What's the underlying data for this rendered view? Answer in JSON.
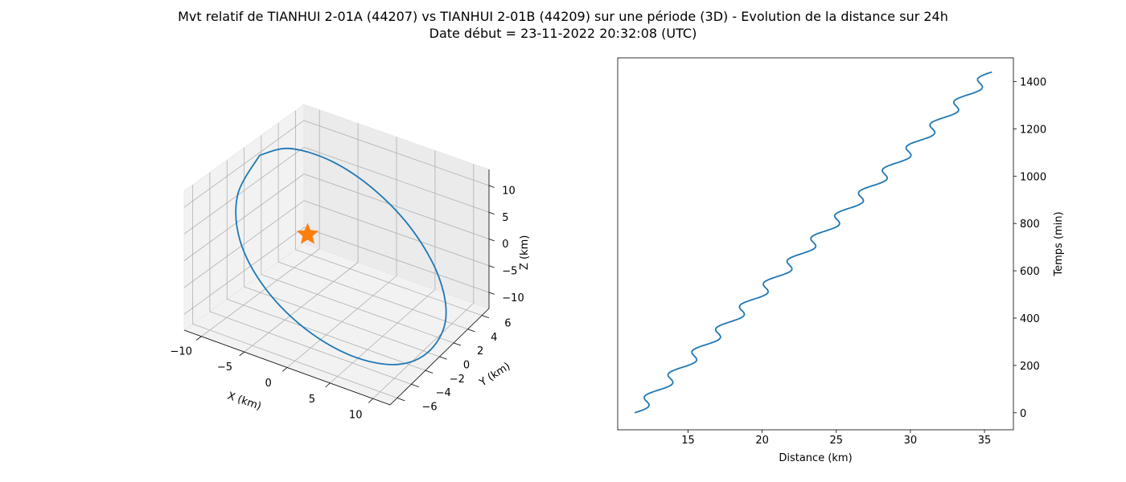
{
  "title_line1": "Mvt relatif de TIANHUI 2-01A (44207) vs TIANHUI 2-01B (44209) sur une période (3D) - Evolution de la distance sur 24h",
  "title_line2": "Date début = 23-11-2022 20:32:08 (UTC)",
  "colors": {
    "series": "#1f77b4",
    "marker": "#ff7f0e"
  },
  "chart_data": [
    {
      "type": "line",
      "projection": "3d",
      "xlabel": "X (km)",
      "ylabel": "Y (km)",
      "zlabel": "Z (km)",
      "x_ticks": [
        -10,
        -5,
        0,
        5,
        10
      ],
      "y_ticks": [
        -6,
        -4,
        -2,
        0,
        2,
        4,
        6
      ],
      "z_ticks": [
        -10,
        -5,
        0,
        5,
        10
      ],
      "xlim": [
        -12,
        12
      ],
      "ylim": [
        -7,
        7
      ],
      "zlim": [
        -13,
        13
      ],
      "grid": true,
      "series": [
        {
          "description": "relative orbit trajectory",
          "x": [
            -10.6,
            -9.4,
            -6.1,
            -1.6,
            3.4,
            8.0,
            10.8,
            11.0,
            9.2,
            5.6,
            1.0,
            -3.8,
            -8.0,
            -10.5,
            -10.6
          ],
          "y": [
            0.5,
            2.9,
            4.8,
            5.8,
            5.7,
            4.4,
            2.2,
            -0.5,
            -2.9,
            -4.8,
            -5.8,
            -5.7,
            -4.4,
            -2.2,
            0.5
          ],
          "z": [
            11.8,
            10.9,
            8.0,
            3.7,
            -1.2,
            -6.0,
            -9.8,
            -12.1,
            -12.3,
            -10.3,
            -6.6,
            -1.9,
            3.0,
            7.6,
            11.8
          ]
        }
      ],
      "marker": {
        "shape": "star",
        "x": -4.5,
        "y": 0.3,
        "z": 0.5
      }
    },
    {
      "type": "line",
      "xlabel": "Distance (km)",
      "ylabel": "Temps (min)",
      "x_ticks": [
        15,
        20,
        25,
        30,
        35
      ],
      "y_ticks": [
        0,
        200,
        400,
        600,
        800,
        1000,
        1200,
        1400
      ],
      "xlim": [
        10.25,
        36.95
      ],
      "ylim": [
        -72,
        1500
      ],
      "yaxis_position": "right",
      "grid": false,
      "series": [
        {
          "description": "distance vs time, drifting with orbital oscillation",
          "distance_start": 11.4,
          "distance_end": 35.5,
          "time_start": 0,
          "time_end": 1440,
          "oscillation_amplitude_km": 0.5,
          "oscillation_period_min": 96
        }
      ]
    }
  ]
}
